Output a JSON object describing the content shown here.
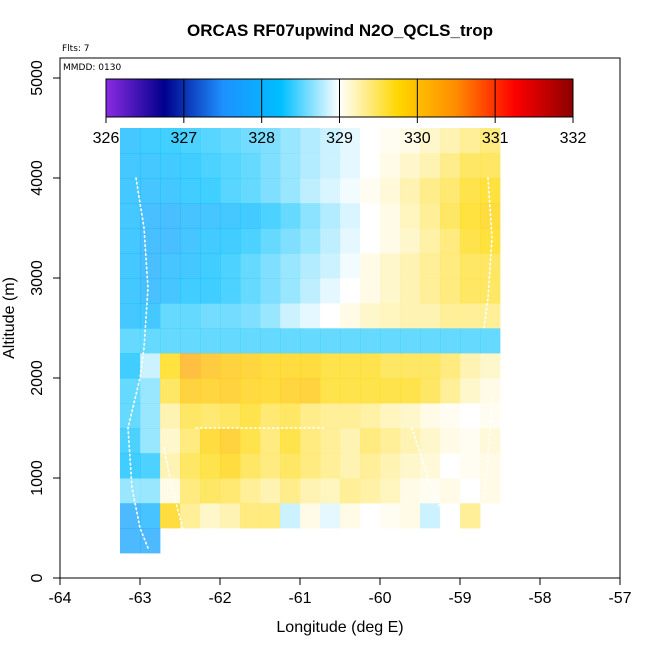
{
  "chart_data": {
    "type": "heatmap",
    "title": "ORCAS RF07upwind N2O_QCLS_trop",
    "flights_label": "Flts: 7",
    "date_label": "MMDD: 0130",
    "xlabel": "Longitude (deg E)",
    "ylabel": "Altitude (m)",
    "xlim": [
      -64,
      -57
    ],
    "ylim": [
      0,
      5200
    ],
    "x_ticks": [
      -64,
      -63,
      -62,
      -61,
      -60,
      -59,
      -58,
      -57
    ],
    "y_ticks": [
      0,
      1000,
      2000,
      3000,
      4000,
      5000
    ],
    "colorbar": {
      "min": 326,
      "max": 332,
      "ticks": [
        326,
        327,
        328,
        329,
        330,
        331,
        332
      ],
      "colors": [
        "#8a2be2",
        "#00008b",
        "#1e90ff",
        "#00bfff",
        "#ffffff",
        "#ffd700",
        "#ff8c00",
        "#ff0000",
        "#8b0000"
      ]
    },
    "cell": {
      "dx": 0.25,
      "dz": 250
    },
    "grid": {
      "x_start": -63.25,
      "z_start": 250,
      "rows": [
        [
          327.8,
          327.8,
          null,
          null,
          null,
          null,
          null,
          null,
          null,
          null,
          null,
          null,
          null,
          null,
          null,
          null,
          null,
          null,
          null
        ],
        [
          327.8,
          328.0,
          329.8,
          329.4,
          329.2,
          329.3,
          329.5,
          329.5,
          328.8,
          329.1,
          328.9,
          329.1,
          329.0,
          329.05,
          329.1,
          328.8,
          329.0,
          329.4,
          null
        ],
        [
          328.6,
          328.6,
          329.1,
          329.5,
          329.6,
          329.55,
          329.4,
          329.3,
          329.45,
          329.3,
          329.25,
          329.4,
          329.35,
          329.25,
          329.1,
          329.05,
          329.1,
          329.0,
          329.1
        ],
        [
          328.2,
          328.3,
          329.3,
          329.6,
          329.7,
          329.8,
          329.6,
          329.5,
          329.6,
          329.5,
          329.4,
          329.3,
          329.4,
          329.3,
          329.2,
          329.15,
          329.0,
          329.05,
          329.1
        ],
        [
          328.3,
          328.6,
          329.2,
          329.5,
          329.8,
          329.95,
          329.7,
          329.5,
          329.7,
          329.5,
          329.4,
          329.3,
          329.5,
          329.4,
          329.3,
          329.2,
          329.1,
          329.05,
          329.15
        ],
        [
          328.4,
          328.6,
          329.3,
          329.6,
          329.55,
          329.6,
          329.7,
          329.55,
          329.6,
          329.45,
          329.4,
          329.4,
          329.35,
          329.25,
          329.2,
          329.1,
          329.05,
          329.0,
          329.05
        ],
        [
          328.4,
          328.6,
          329.6,
          329.95,
          329.9,
          329.95,
          329.85,
          329.8,
          329.9,
          329.95,
          329.7,
          329.7,
          329.7,
          329.7,
          329.7,
          329.6,
          329.4,
          329.2,
          329.1
        ],
        [
          328.2,
          328.8,
          329.75,
          330.2,
          330.05,
          329.95,
          329.9,
          329.8,
          329.8,
          329.8,
          329.7,
          329.7,
          329.7,
          329.6,
          329.6,
          329.6,
          329.5,
          329.3,
          329.2
        ],
        [
          328.4,
          328.4,
          328.4,
          328.4,
          328.4,
          328.4,
          328.4,
          328.4,
          328.4,
          328.4,
          328.4,
          328.4,
          328.4,
          328.4,
          328.4,
          328.4,
          328.4,
          328.4,
          328.4
        ],
        [
          328.1,
          328.1,
          328.4,
          328.4,
          328.45,
          328.45,
          328.5,
          328.6,
          328.8,
          328.9,
          329.0,
          329.1,
          329.2,
          329.25,
          329.3,
          329.3,
          329.4,
          329.4,
          329.4
        ],
        [
          328.1,
          327.95,
          328.05,
          328.2,
          328.2,
          328.3,
          328.4,
          328.5,
          328.6,
          328.75,
          328.9,
          329.0,
          329.1,
          329.2,
          329.3,
          329.4,
          329.5,
          329.6,
          329.6
        ],
        [
          328.1,
          327.9,
          328.05,
          328.1,
          328.2,
          328.3,
          328.4,
          328.5,
          328.6,
          328.7,
          328.8,
          328.95,
          329.1,
          329.2,
          329.3,
          329.4,
          329.5,
          329.6,
          329.6
        ],
        [
          328.1,
          327.9,
          327.9,
          328.05,
          328.15,
          328.2,
          328.3,
          328.4,
          328.5,
          328.6,
          328.75,
          328.9,
          329.0,
          329.1,
          329.2,
          329.35,
          329.5,
          329.7,
          329.75
        ],
        [
          328.1,
          327.9,
          327.9,
          328.0,
          328.05,
          328.1,
          328.15,
          328.3,
          328.4,
          328.55,
          328.7,
          328.85,
          329.0,
          329.1,
          329.25,
          329.4,
          329.6,
          329.75,
          329.8
        ],
        [
          328.1,
          328.05,
          328.1,
          328.2,
          328.25,
          328.35,
          328.4,
          328.5,
          328.6,
          328.75,
          328.85,
          328.95,
          329.05,
          329.15,
          329.3,
          329.45,
          329.55,
          329.7,
          329.75
        ],
        [
          328.1,
          328.1,
          328.15,
          328.2,
          328.3,
          328.35,
          328.4,
          328.5,
          328.6,
          328.7,
          328.8,
          328.9,
          329.0,
          329.1,
          329.2,
          329.3,
          329.45,
          329.6,
          329.6
        ],
        [
          328.1,
          328.2,
          328.25,
          328.3,
          328.35,
          328.4,
          328.45,
          328.5,
          328.6,
          328.7,
          328.8,
          328.9,
          329.0,
          329.05,
          329.1,
          329.2,
          329.3,
          329.4,
          329.5
        ]
      ]
    }
  }
}
